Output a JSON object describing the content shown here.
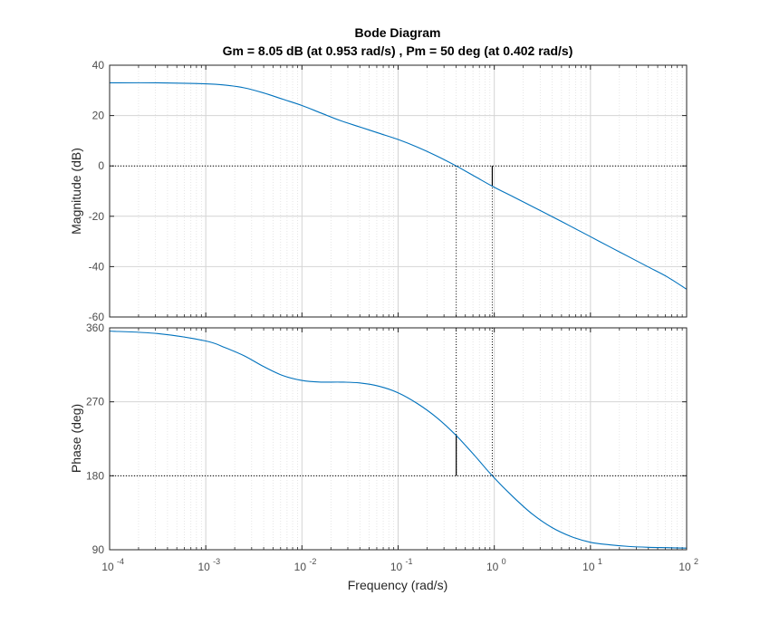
{
  "chart_data": {
    "type": "line",
    "title": "Bode Diagram",
    "subtitle": "Gm = 8.05 dB (at 0.953 rad/s) ,  Pm = 50 deg (at 0.402 rad/s)",
    "xlabel": "Frequency  (rad/s)",
    "x_scale": "log",
    "xlim": [
      0.0001,
      100
    ],
    "x_tick_labels": [
      "10",
      "10",
      "10",
      "10",
      "10",
      "10",
      "10"
    ],
    "x_tick_exponents": [
      "-4",
      "-3",
      "-2",
      "-1",
      "0",
      "1",
      "2"
    ],
    "grid": true,
    "line_color": "#0072BD",
    "margins": {
      "gain_margin_db": 8.05,
      "gain_crossover_freq": 0.953,
      "phase_margin_deg": 50,
      "phase_crossover_freq": 0.402
    },
    "magnitude": {
      "ylabel": "Magnitude (dB)",
      "ylim": [
        -60,
        40
      ],
      "yticks": [
        "40",
        "20",
        "0",
        "-20",
        "-40",
        "-60"
      ],
      "series": [
        {
          "x": [
            0.0001,
            0.000316,
            0.001,
            0.00158,
            0.00251,
            0.00398,
            0.00631,
            0.01,
            0.0158,
            0.0251,
            0.0398,
            0.0631,
            0.1,
            0.158,
            0.251,
            0.402,
            0.631,
            0.953,
            1.58,
            2.51,
            3.98,
            6.31,
            10,
            15.8,
            25.1,
            39.8,
            63.1,
            100
          ],
          "y": [
            33,
            33,
            32.6,
            32.1,
            31,
            29,
            26.5,
            24,
            21,
            18,
            15.5,
            13,
            10.5,
            7.5,
            4,
            0,
            -4.2,
            -8.05,
            -12.3,
            -16.2,
            -20.1,
            -24.1,
            -28.1,
            -32.1,
            -36.1,
            -40.1,
            -44.1,
            -49
          ]
        }
      ]
    },
    "phase": {
      "ylabel": "Phase (deg)",
      "ylim": [
        90,
        360
      ],
      "yticks": [
        "360",
        "270",
        "180",
        "90"
      ],
      "series": [
        {
          "x": [
            0.0001,
            0.000316,
            0.001,
            0.00158,
            0.00251,
            0.00398,
            0.00631,
            0.01,
            0.0158,
            0.0251,
            0.0398,
            0.0631,
            0.1,
            0.158,
            0.251,
            0.402,
            0.631,
            0.953,
            1.58,
            2.51,
            3.98,
            6.31,
            10,
            15.8,
            25.1,
            39.8,
            63.1,
            100
          ],
          "y": [
            356,
            353,
            344,
            336,
            326,
            313,
            302,
            296,
            294,
            294,
            293,
            289,
            281,
            268,
            251,
            229,
            204,
            180,
            154,
            133,
            117,
            106,
            99,
            96,
            94,
            93,
            92.5,
            92
          ]
        }
      ]
    }
  }
}
